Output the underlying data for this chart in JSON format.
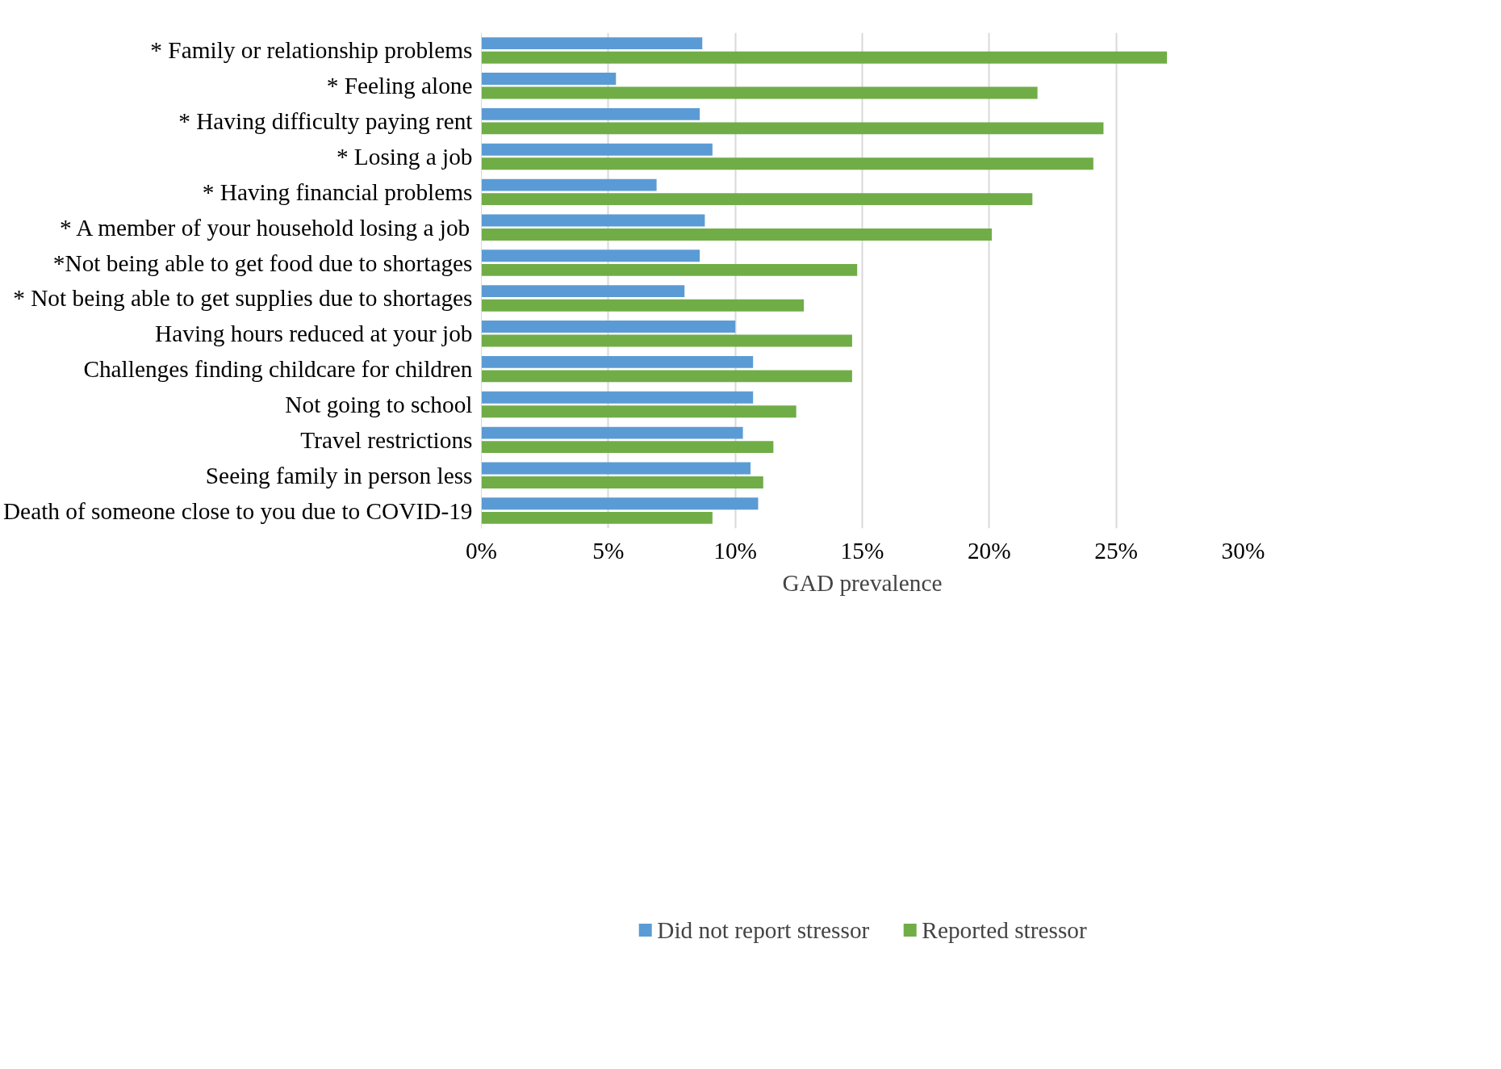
{
  "chart_data": {
    "type": "bar",
    "orientation": "horizontal",
    "xlabel": "GAD prevalence",
    "categories": [
      "* Family or relationship problems",
      "* Feeling alone",
      "* Having difficulty paying rent",
      "* Losing a job",
      "* Having financial problems",
      "* A member of your household losing a job",
      "*Not being able to get food due to shortages",
      "* Not being able to get supplies due to shortages",
      "Having hours reduced at your job",
      "Challenges finding childcare for children",
      "Not going to school",
      "Travel restrictions",
      "Seeing family in person less",
      "Death of someone close to you due to COVID-19"
    ],
    "series": [
      {
        "name": "Did not report stressor",
        "color": "#5b9bd5",
        "values": [
          8.7,
          5.3,
          8.6,
          9.1,
          6.9,
          8.8,
          8.6,
          8.0,
          10.0,
          10.7,
          10.7,
          10.3,
          10.6,
          10.9
        ]
      },
      {
        "name": "Reported stressor",
        "color": "#70ad47",
        "values": [
          27.0,
          21.9,
          24.5,
          24.1,
          21.7,
          20.1,
          14.8,
          12.7,
          14.6,
          14.6,
          12.4,
          11.5,
          11.1,
          9.1
        ]
      }
    ],
    "xlim": [
      0,
      30
    ],
    "xticks": [
      {
        "value": 0,
        "label": "0%"
      },
      {
        "value": 5,
        "label": "5%"
      },
      {
        "value": 10,
        "label": "10%"
      },
      {
        "value": 15,
        "label": "15%"
      },
      {
        "value": 20,
        "label": "20%"
      },
      {
        "value": 25,
        "label": "25%"
      },
      {
        "value": 30,
        "label": "30%"
      }
    ],
    "grid": "x",
    "legend": "bottom"
  }
}
